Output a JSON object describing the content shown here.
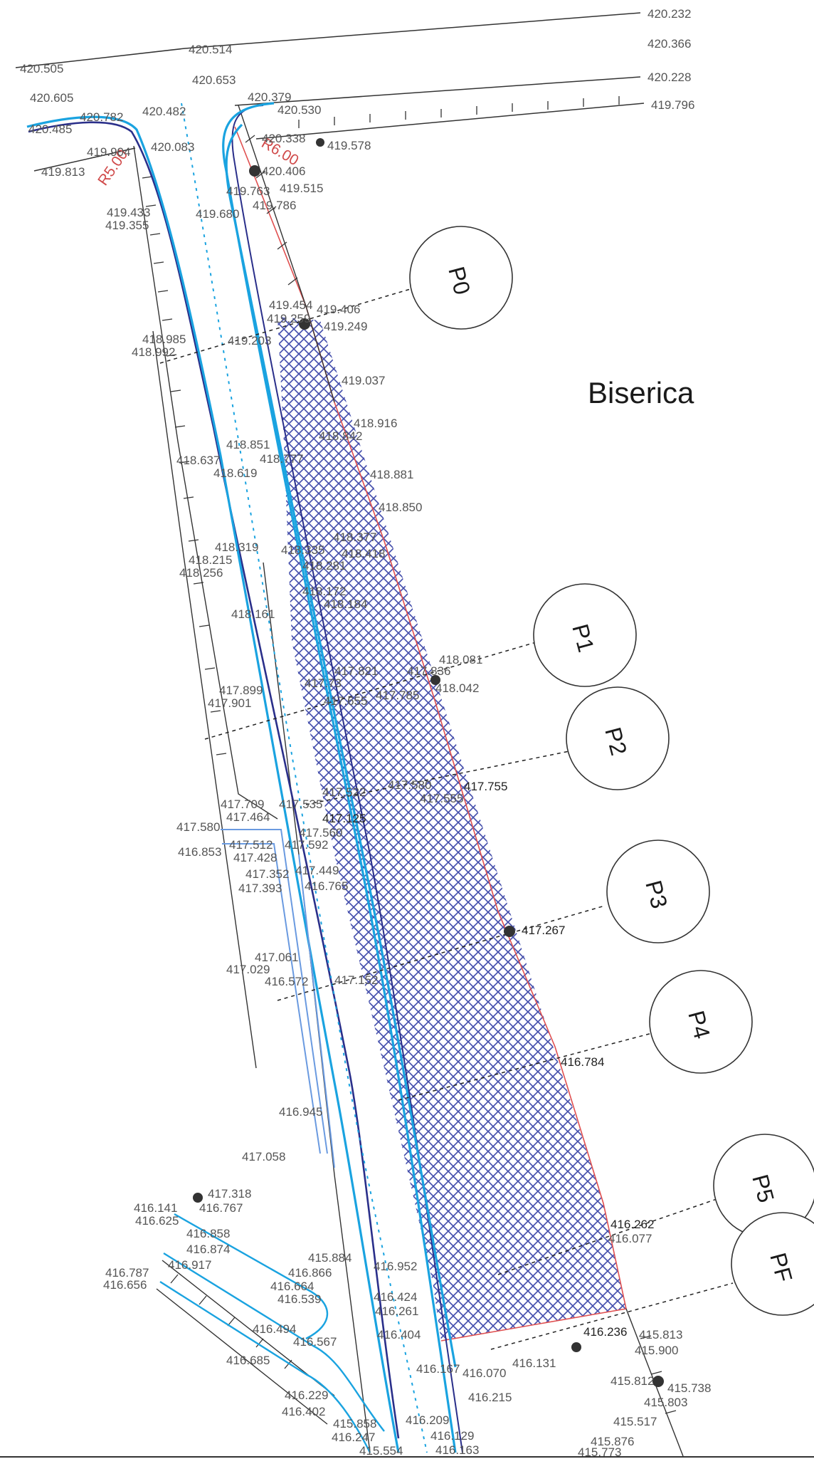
{
  "title": "Biserica",
  "profiles": [
    "P0",
    "P1",
    "P2",
    "P3",
    "P4",
    "P5",
    "PF"
  ],
  "annotations": [
    "R5.00",
    "R6.00"
  ],
  "colors": {
    "pavement_hatch": "#3a45a8",
    "curb_blue": "#1aa3e0",
    "road_edge_navy": "#2a2f8a",
    "boundary_red": "#e05050",
    "line_dark": "#333333",
    "label_gray": "#555555"
  },
  "elevations": {
    "e01": "420.232",
    "e02": "420.366",
    "e03": "420.228",
    "e04": "419.796",
    "e05": "420.514",
    "e06": "420.505",
    "e07": "420.653",
    "e08": "420.605",
    "e09": "420.379",
    "e10": "420.530",
    "e11": "420.482",
    "e12": "420.782",
    "e13": "420.485",
    "e14": "420.338",
    "e15": "419.578",
    "e16": "419.904",
    "e17": "420.083",
    "e18": "420.406",
    "e19": "419.813",
    "e20": "419.763",
    "e21": "419.515",
    "e22": "419.786",
    "e23": "419.433",
    "e24": "419.355",
    "e25": "419.680",
    "e26": "419.454",
    "e27": "419.406",
    "e28": "419.259",
    "e29": "419.249",
    "e30": "418.985",
    "e31": "418.992",
    "e32": "419.203",
    "e33": "419.037",
    "e34": "418.916",
    "e35": "418.842",
    "e36": "418.851",
    "e37": "418.777",
    "e38": "418.637",
    "e39": "418.619",
    "e40": "418.881",
    "e41": "418.850",
    "e42": "418.319",
    "e43": "418.377",
    "e44": "418.335",
    "e45": "418.215",
    "e46": "418.256",
    "e47": "418.418",
    "e48": "418.281",
    "e49": "418.172",
    "e50": "418.184",
    "e51": "418.161",
    "e52": "418.081",
    "e53": "418.042",
    "e54": "417.821",
    "e55": "417.836",
    "e56": "417.899",
    "e57": "417.901",
    "e58": "417.73",
    "e59": "417.785",
    "e60": "417.655",
    "e61": "417.755",
    "e62": "417.522",
    "e63": "417.580",
    "e64": "417.555",
    "e65": "417.709",
    "e66": "417.464",
    "e67": "417.535",
    "e68": "417.125",
    "e69": "417.580",
    "e70": "416.853",
    "e71": "417.560",
    "e72": "417.512",
    "e73": "417.428",
    "e74": "417.592",
    "e75": "417.352",
    "e76": "417.449",
    "e77": "417.393",
    "e78": "416.765",
    "e79": "417.267",
    "e80": "417.061",
    "e81": "417.029",
    "e82": "416.572",
    "e83": "417.152",
    "e84": "416.784",
    "e85": "416.945",
    "e86": "417.058",
    "e87": "417.318",
    "e88": "416.141",
    "e89": "416.767",
    "e90": "416.625",
    "e91": "416.858",
    "e92": "416.874",
    "e93": "416.917",
    "e94": "416.787",
    "e95": "416.656",
    "e96": "416.262",
    "e97": "416.077",
    "e98": "415.884",
    "e99": "416.866",
    "e100": "416.952",
    "e101": "416.664",
    "e102": "416.539",
    "e103": "416.424",
    "e104": "416.261",
    "e105": "416.494",
    "e106": "416.567",
    "e107": "416.404",
    "e108": "416.236",
    "e109": "415.813",
    "e110": "415.900",
    "e111": "416.070",
    "e112": "416.131",
    "e113": "416.685",
    "e114": "416.229",
    "e115": "415.812",
    "e116": "415.738",
    "e117": "415.803",
    "e118": "416.402",
    "e119": "415.858",
    "e120": "416.209",
    "e121": "415.517",
    "e122": "416.247",
    "e123": "416.129",
    "e124": "415.876",
    "e125": "415.773",
    "e126": "415.554",
    "e127": "416.163",
    "e128": "416.215",
    "e129": "416.167"
  }
}
